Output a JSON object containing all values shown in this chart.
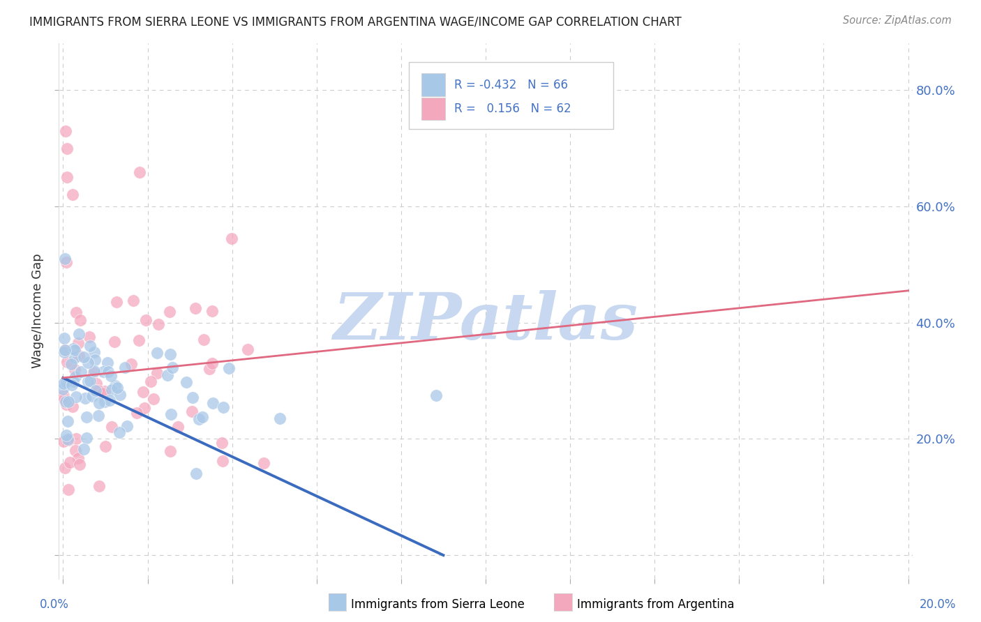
{
  "title": "IMMIGRANTS FROM SIERRA LEONE VS IMMIGRANTS FROM ARGENTINA WAGE/INCOME GAP CORRELATION CHART",
  "source": "Source: ZipAtlas.com",
  "ylabel": "Wage/Income Gap",
  "color_sl": "#a8c8e8",
  "color_arg": "#f4a8be",
  "trendline_sl_color": "#3a6bbf",
  "trendline_arg_color": "#e06880",
  "background_color": "#ffffff",
  "watermark_color": "#c8d8f0",
  "watermark_text": "ZIPatlas",
  "legend_text_color": "#4472c4",
  "title_color": "#222222",
  "source_color": "#888888",
  "ylabel_color": "#333333",
  "grid_color": "#cccccc",
  "tick_color": "#4472c4",
  "r_sl": "-0.432",
  "n_sl": "66",
  "r_arg": "0.156",
  "n_arg": "62",
  "xlim_min": 0.0,
  "xlim_max": 0.2,
  "ylim_min": -0.04,
  "ylim_max": 0.88,
  "y_ticks": [
    0.0,
    0.2,
    0.4,
    0.6,
    0.8
  ],
  "y_tick_labels": [
    "",
    "20.0%",
    "40.0%",
    "60.0%",
    "80.0%"
  ],
  "x_tick_positions": [
    0.0,
    0.02,
    0.04,
    0.06,
    0.08,
    0.1,
    0.12,
    0.14,
    0.16,
    0.18,
    0.2
  ],
  "trendline_sl_x0": 0.0,
  "trendline_sl_y0": 0.305,
  "trendline_sl_x1": 0.09,
  "trendline_sl_y1": 0.0,
  "trendline_arg_x0": 0.0,
  "trendline_arg_y0": 0.305,
  "trendline_arg_x1": 0.2,
  "trendline_arg_y1": 0.455
}
